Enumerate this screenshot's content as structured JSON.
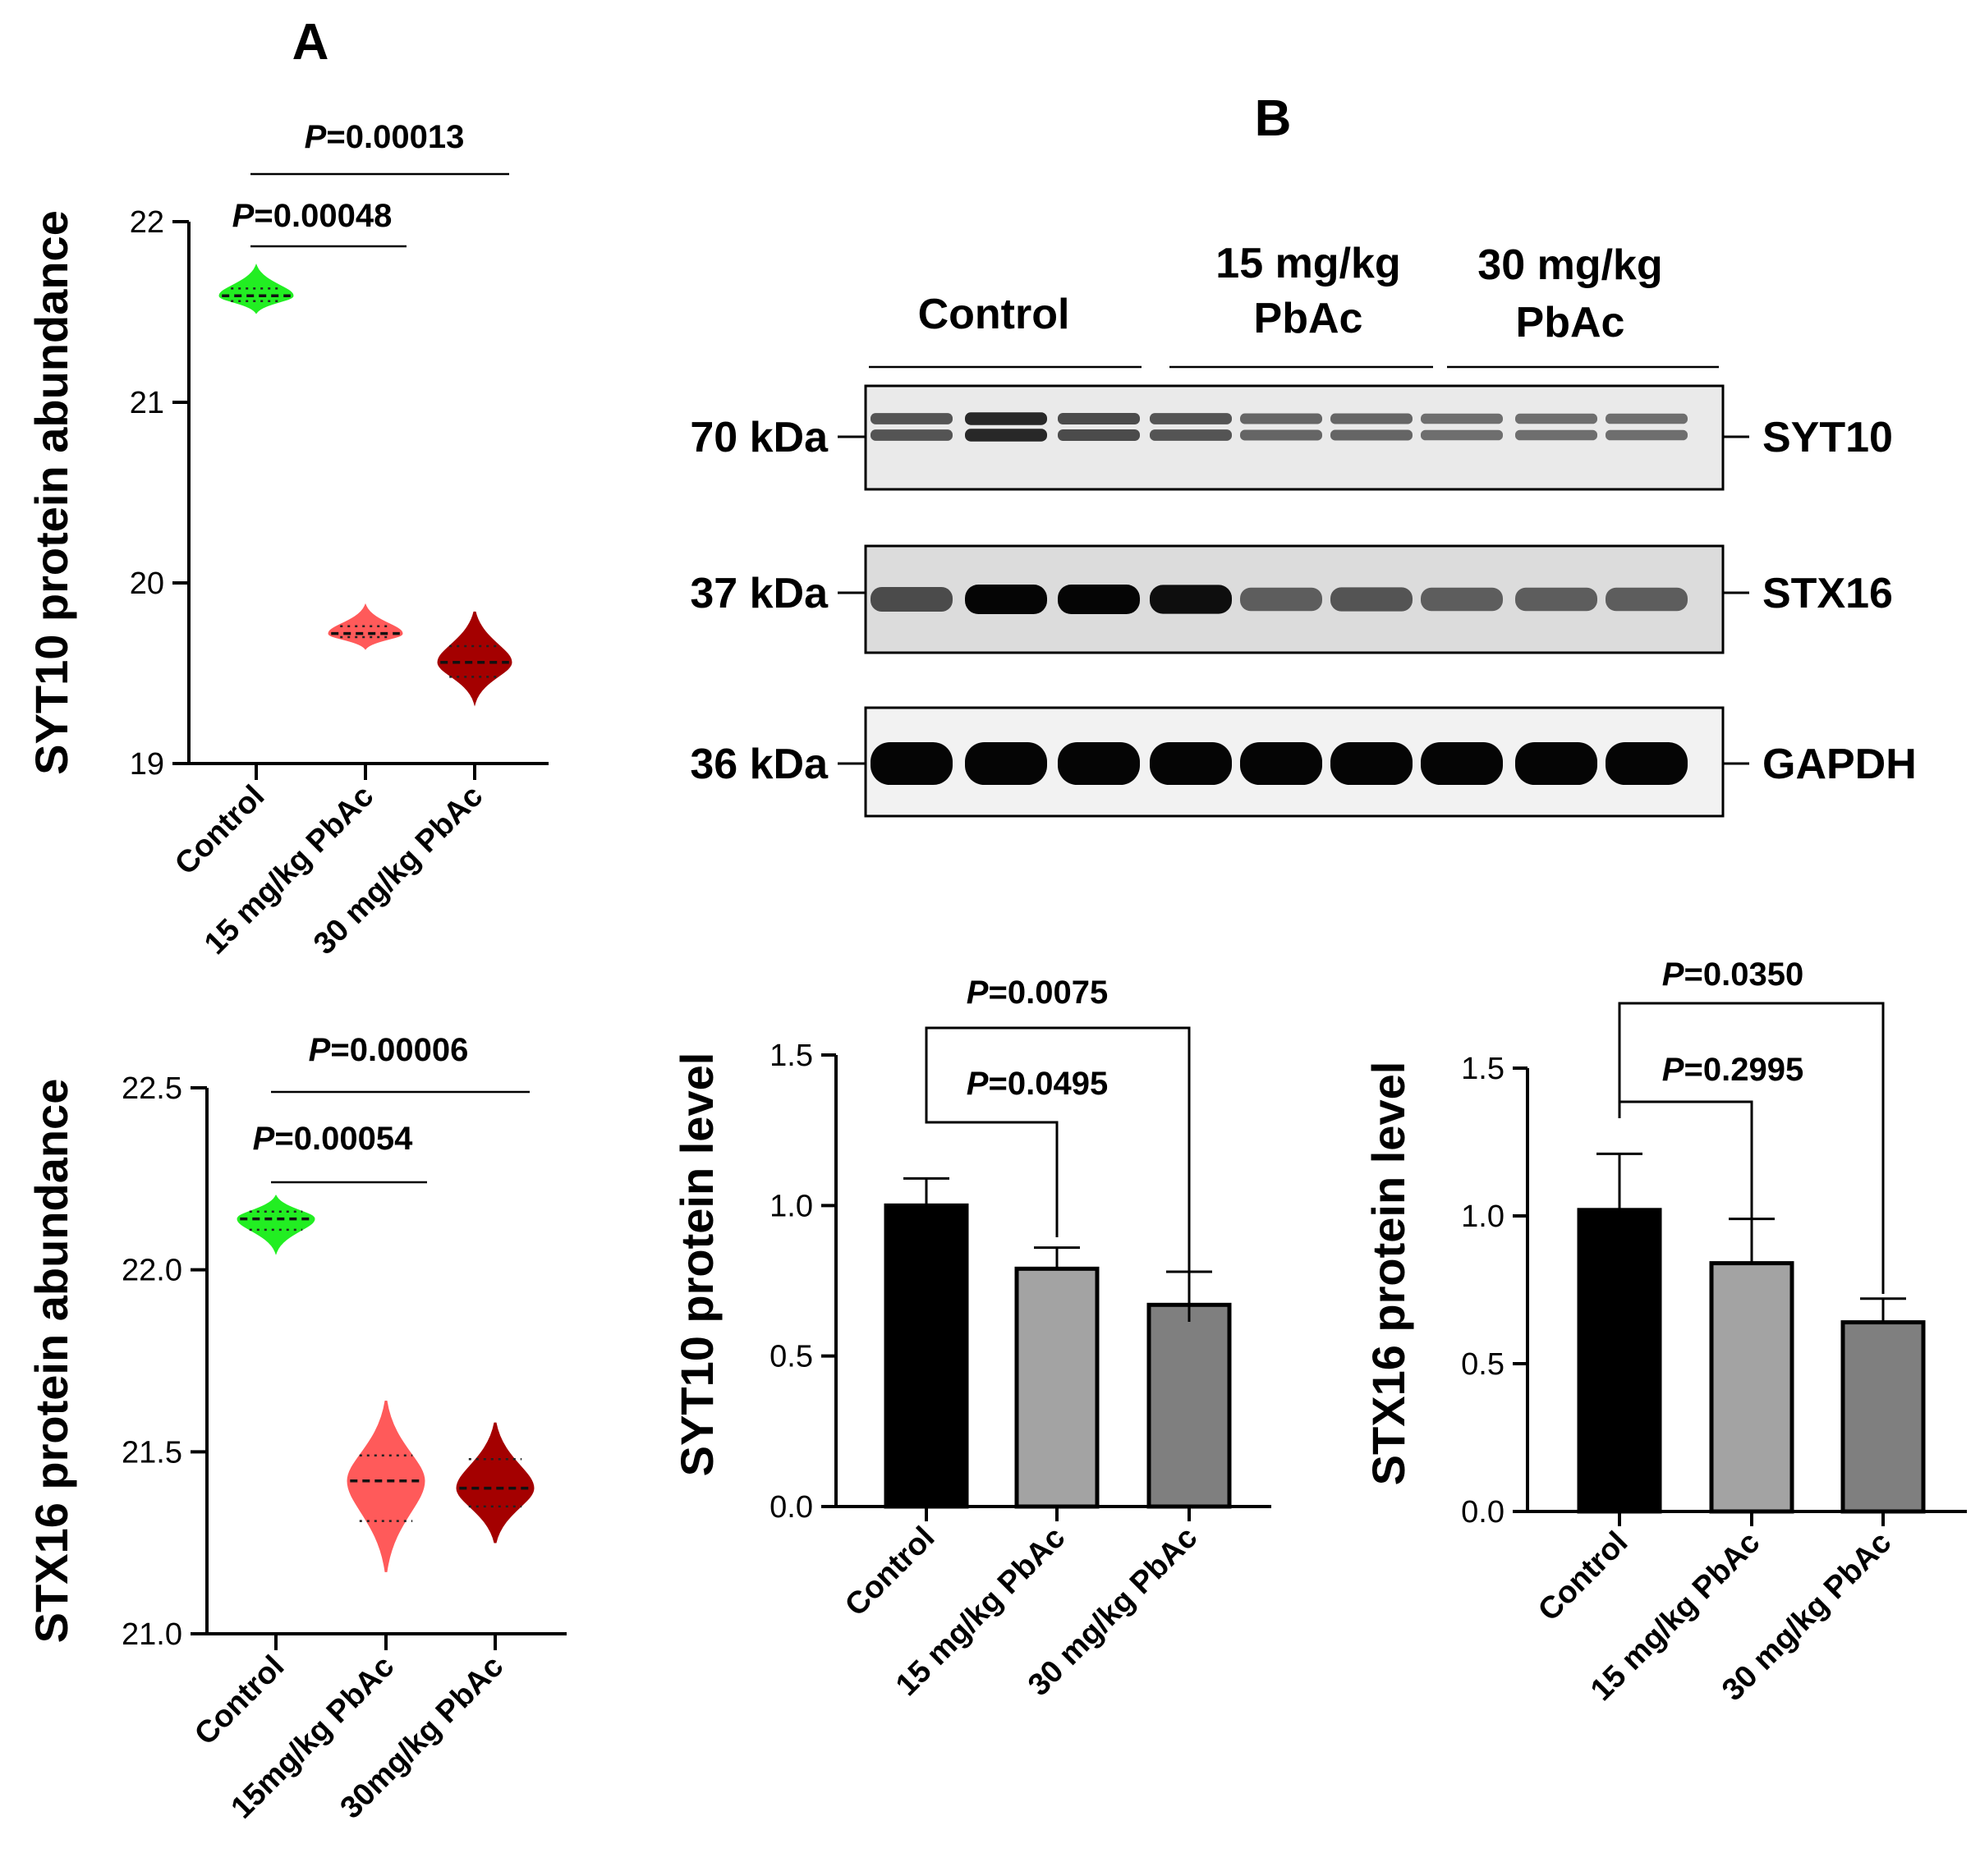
{
  "figure": {
    "panel_a": "A",
    "panel_b": "B",
    "p_prefix": "P",
    "colors": {
      "control": "#22ee22",
      "low_dose": "#ff5a5a",
      "high_dose": "#a40000",
      "bar_control": "#000000",
      "bar_low": "#a3a3a3",
      "bar_high": "#7f7f7f"
    }
  },
  "western_blot": {
    "groups": [
      "Control",
      "15 mg/kg\nPbAc",
      "30 mg/kg\nPbAc"
    ],
    "blots": [
      {
        "protein": "SYT10",
        "marker": "70 kDa",
        "lane_intensity": [
          0.55,
          0.8,
          0.6,
          0.55,
          0.45,
          0.45,
          0.4,
          0.4,
          0.4
        ]
      },
      {
        "protein": "STX16",
        "marker": "37 kDa",
        "lane_intensity": [
          0.6,
          1.0,
          1.0,
          0.95,
          0.5,
          0.55,
          0.5,
          0.5,
          0.5
        ]
      },
      {
        "protein": "GAPDH",
        "marker": "36 kDa",
        "lane_intensity": [
          1,
          1,
          1,
          1,
          1,
          1,
          1,
          1,
          1
        ]
      }
    ]
  },
  "chart_data": [
    {
      "id": "violin_syt10",
      "type": "violin",
      "ylabel": "SYT10 protein abundance",
      "ylim": [
        19,
        22
      ],
      "yticks": [
        "19",
        "20",
        "21",
        "22"
      ],
      "categories": [
        "Control",
        "15 mg/kg PbAc",
        "30 mg/kg PbAc"
      ],
      "series": [
        {
          "name": "Control",
          "median": 21.59,
          "min": 21.5,
          "max": 21.75,
          "q1": 21.56,
          "q3": 21.63
        },
        {
          "name": "15 mg/kg PbAc",
          "median": 19.72,
          "min": 19.64,
          "max": 19.87,
          "q1": 19.7,
          "q3": 19.76
        },
        {
          "name": "30 mg/kg PbAc",
          "median": 19.56,
          "min": 19.34,
          "max": 19.84,
          "q1": 19.48,
          "q3": 19.65
        }
      ],
      "comparisons": [
        {
          "p": "=0.00048",
          "groups": [
            0,
            1
          ]
        },
        {
          "p": "=0.00013",
          "groups": [
            0,
            2
          ]
        }
      ]
    },
    {
      "id": "violin_stx16",
      "type": "violin",
      "ylabel": "STX16 protein abundance",
      "ylim": [
        21.0,
        22.5
      ],
      "yticks": [
        "21.0",
        "21.5",
        "22.0",
        "22.5"
      ],
      "categories": [
        "Control",
        "15mg/kg PbAc",
        "30mg/kg PbAc"
      ],
      "series": [
        {
          "name": "Control",
          "median": 22.14,
          "min": 22.05,
          "max": 22.2,
          "q1": 22.11,
          "q3": 22.16
        },
        {
          "name": "15mg/kg PbAc",
          "median": 21.42,
          "min": 21.17,
          "max": 21.64,
          "q1": 21.31,
          "q3": 21.49
        },
        {
          "name": "30mg/kg PbAc",
          "median": 21.4,
          "min": 21.25,
          "max": 21.58,
          "q1": 21.35,
          "q3": 21.48
        }
      ],
      "comparisons": [
        {
          "p": "=0.00054",
          "groups": [
            0,
            1
          ]
        },
        {
          "p": "=0.00006",
          "groups": [
            0,
            2
          ]
        }
      ]
    },
    {
      "id": "bar_syt10",
      "type": "bar",
      "ylabel": "SYT10 protein level",
      "ylim": [
        0,
        1.5
      ],
      "yticks": [
        "0.0",
        "0.5",
        "1.0",
        "1.5"
      ],
      "categories": [
        "Control",
        "15 mg/kg PbAc",
        "30 mg/kg PbAc"
      ],
      "values": [
        1.0,
        0.79,
        0.67
      ],
      "errors": [
        0.09,
        0.07,
        0.11
      ],
      "comparisons": [
        {
          "p": "=0.0495",
          "groups": [
            0,
            1
          ]
        },
        {
          "p": "=0.0075",
          "groups": [
            0,
            2
          ]
        }
      ]
    },
    {
      "id": "bar_stx16",
      "type": "bar",
      "ylabel": "STX16 protein level",
      "ylim": [
        0,
        1.5
      ],
      "yticks": [
        "0.0",
        "0.5",
        "1.0",
        "1.5"
      ],
      "categories": [
        "Control",
        "15 mg/kg PbAc",
        "30 mg/kg PbAc"
      ],
      "values": [
        1.02,
        0.84,
        0.64
      ],
      "errors": [
        0.19,
        0.15,
        0.08
      ],
      "comparisons": [
        {
          "p": "=0.2995",
          "groups": [
            0,
            1
          ]
        },
        {
          "p": "=0.0350",
          "groups": [
            0,
            2
          ]
        }
      ]
    }
  ]
}
